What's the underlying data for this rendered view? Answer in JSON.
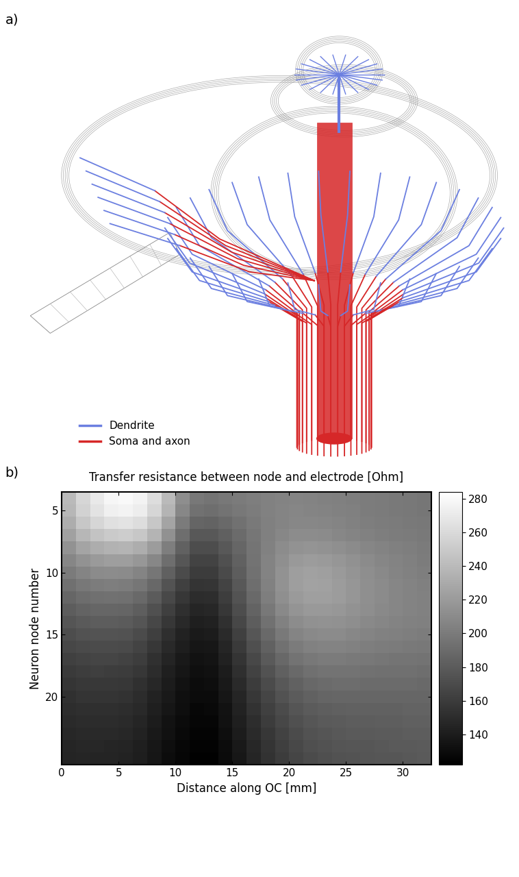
{
  "panel_a": {
    "panel_label": "a)",
    "legend": [
      {
        "name": "Dendrite",
        "color": "#6b7fe0"
      },
      {
        "name": "Soma and axon",
        "color": "#d62728"
      }
    ]
  },
  "chart_data": {
    "type": "heatmap",
    "panel_label": "b)",
    "title": "Transfer resistance between node and electrode [Ohm]",
    "x_label": "Distance along OC [mm]",
    "y_label": "Neuron node number",
    "x": [
      0.625,
      1.875,
      3.125,
      4.375,
      5.625,
      6.875,
      8.125,
      9.375,
      10.625,
      11.875,
      13.125,
      14.375,
      15.625,
      16.875,
      18.125,
      19.375,
      20.625,
      21.875,
      23.125,
      24.375,
      25.625,
      26.875,
      28.125,
      29.375,
      30.625,
      31.875
    ],
    "y": [
      4,
      5,
      6,
      7,
      8,
      9,
      10,
      11,
      12,
      13,
      14,
      15,
      16,
      17,
      18,
      19,
      20,
      21,
      22,
      23,
      24,
      25
    ],
    "cells": [
      [
        240,
        258,
        270,
        278,
        280,
        276,
        262,
        240,
        212,
        198,
        196,
        198,
        200,
        202,
        204,
        205,
        206,
        205,
        204,
        203,
        202,
        201,
        200,
        199,
        198,
        197
      ],
      [
        238,
        255,
        266,
        274,
        276,
        272,
        258,
        236,
        208,
        194,
        192,
        195,
        198,
        201,
        204,
        206,
        207,
        206,
        205,
        204,
        203,
        201,
        200,
        199,
        198,
        197
      ],
      [
        232,
        248,
        258,
        264,
        266,
        262,
        248,
        226,
        200,
        186,
        185,
        189,
        194,
        199,
        203,
        206,
        208,
        208,
        207,
        206,
        204,
        202,
        201,
        200,
        199,
        198
      ],
      [
        224,
        238,
        246,
        250,
        252,
        248,
        236,
        214,
        192,
        178,
        178,
        183,
        190,
        197,
        203,
        208,
        211,
        211,
        210,
        208,
        206,
        204,
        202,
        201,
        200,
        199
      ],
      [
        215,
        226,
        232,
        235,
        236,
        232,
        221,
        202,
        184,
        171,
        171,
        178,
        187,
        196,
        204,
        211,
        215,
        216,
        215,
        213,
        210,
        207,
        205,
        203,
        202,
        200
      ],
      [
        207,
        215,
        220,
        222,
        222,
        218,
        208,
        192,
        177,
        165,
        165,
        173,
        184,
        195,
        205,
        213,
        219,
        221,
        220,
        217,
        214,
        210,
        207,
        205,
        203,
        201
      ],
      [
        200,
        206,
        210,
        211,
        210,
        206,
        197,
        183,
        170,
        160,
        160,
        169,
        181,
        194,
        205,
        215,
        222,
        224,
        223,
        220,
        216,
        212,
        209,
        206,
        204,
        202
      ],
      [
        193,
        198,
        201,
        202,
        201,
        197,
        188,
        175,
        163,
        155,
        156,
        165,
        178,
        192,
        204,
        215,
        222,
        225,
        224,
        221,
        217,
        213,
        210,
        207,
        205,
        203
      ],
      [
        187,
        191,
        193,
        194,
        193,
        189,
        180,
        168,
        157,
        150,
        151,
        161,
        175,
        189,
        202,
        213,
        220,
        223,
        223,
        221,
        217,
        213,
        210,
        207,
        205,
        204
      ],
      [
        181,
        185,
        187,
        187,
        186,
        182,
        173,
        162,
        152,
        146,
        147,
        157,
        171,
        185,
        198,
        209,
        216,
        219,
        219,
        218,
        215,
        212,
        209,
        207,
        205,
        204
      ],
      [
        176,
        179,
        181,
        181,
        180,
        176,
        167,
        157,
        148,
        142,
        143,
        153,
        167,
        181,
        194,
        204,
        211,
        214,
        215,
        214,
        212,
        209,
        207,
        205,
        204,
        203
      ],
      [
        171,
        174,
        175,
        175,
        174,
        170,
        162,
        152,
        144,
        139,
        140,
        149,
        163,
        177,
        189,
        199,
        206,
        209,
        210,
        210,
        208,
        206,
        204,
        203,
        202,
        201
      ],
      [
        167,
        169,
        170,
        170,
        169,
        165,
        157,
        148,
        141,
        136,
        137,
        146,
        159,
        172,
        184,
        194,
        200,
        204,
        205,
        205,
        204,
        202,
        201,
        200,
        199,
        198
      ],
      [
        163,
        165,
        166,
        166,
        164,
        161,
        153,
        145,
        138,
        134,
        135,
        143,
        155,
        168,
        179,
        188,
        195,
        198,
        200,
        200,
        199,
        198,
        197,
        196,
        196,
        195
      ],
      [
        159,
        161,
        162,
        161,
        160,
        157,
        150,
        142,
        136,
        132,
        133,
        140,
        152,
        164,
        174,
        183,
        189,
        193,
        195,
        195,
        195,
        194,
        193,
        193,
        193,
        192
      ],
      [
        156,
        158,
        158,
        158,
        157,
        153,
        147,
        140,
        134,
        130,
        131,
        138,
        149,
        160,
        170,
        178,
        184,
        188,
        190,
        191,
        191,
        190,
        190,
        190,
        190,
        189
      ],
      [
        153,
        155,
        155,
        155,
        154,
        150,
        144,
        138,
        132,
        129,
        129,
        136,
        146,
        157,
        166,
        174,
        180,
        184,
        186,
        187,
        187,
        187,
        187,
        187,
        187,
        187
      ],
      [
        151,
        152,
        152,
        152,
        151,
        148,
        142,
        136,
        131,
        127,
        128,
        134,
        144,
        154,
        163,
        170,
        176,
        180,
        182,
        183,
        184,
        184,
        184,
        184,
        185,
        185
      ],
      [
        149,
        150,
        150,
        150,
        149,
        146,
        140,
        134,
        129,
        126,
        126,
        133,
        142,
        151,
        160,
        167,
        173,
        177,
        179,
        180,
        181,
        181,
        182,
        182,
        183,
        183
      ],
      [
        147,
        148,
        148,
        148,
        147,
        144,
        138,
        133,
        128,
        125,
        125,
        131,
        140,
        149,
        157,
        164,
        170,
        174,
        176,
        178,
        179,
        179,
        180,
        180,
        181,
        181
      ],
      [
        146,
        147,
        147,
        146,
        145,
        142,
        137,
        131,
        127,
        124,
        124,
        130,
        138,
        147,
        155,
        162,
        168,
        172,
        174,
        176,
        177,
        177,
        178,
        179,
        179,
        180
      ],
      [
        145,
        146,
        145,
        145,
        144,
        141,
        136,
        130,
        126,
        123,
        123,
        129,
        137,
        146,
        154,
        160,
        166,
        170,
        172,
        174,
        175,
        176,
        177,
        177,
        178,
        179
      ]
    ],
    "xlim": [
      0,
      32.5
    ],
    "xticks": [
      0,
      5,
      10,
      15,
      20,
      25,
      30
    ],
    "ylim": [
      25.5,
      3.5
    ],
    "yticks": [
      5,
      10,
      15,
      20
    ],
    "colorbar": {
      "clim": [
        122,
        284
      ],
      "ticks": [
        140,
        160,
        180,
        200,
        220,
        240,
        260,
        280
      ]
    },
    "color": "gray"
  }
}
